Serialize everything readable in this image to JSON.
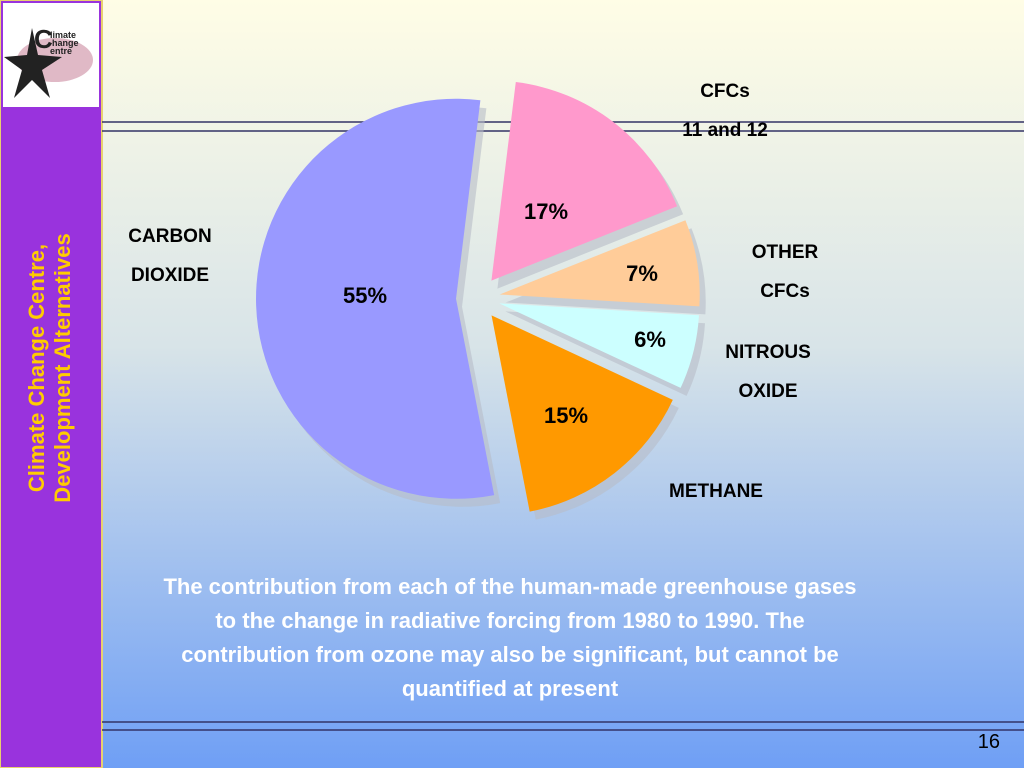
{
  "sidebar": {
    "lines": [
      "Climate Change Centre,",
      "Development Alternatives"
    ]
  },
  "logo": {
    "initial": "C",
    "lines": [
      "limate",
      "hange",
      "entre"
    ]
  },
  "chart_data": {
    "type": "pie",
    "categories": [
      [
        "CFCs",
        "11 and 12"
      ],
      [
        "OTHER",
        "CFCs"
      ],
      [
        "NITROUS",
        "OXIDE"
      ],
      [
        "METHANE"
      ],
      [
        "CARBON",
        "DIOXIDE"
      ]
    ],
    "values": [
      17,
      7,
      6,
      15,
      55
    ],
    "value_labels": [
      "17%",
      "7%",
      "6%",
      "15%",
      "55%"
    ],
    "colors": [
      "#ff99cc",
      "#ffcc99",
      "#ccffff",
      "#ff9900",
      "#9999ff"
    ]
  },
  "caption": [
    "The contribution from each of the human-made greenhouse gases",
    "to the change in radiative forcing from 1980 to 1990.  The",
    "contribution from ozone may also be significant, but cannot  be",
    "quantified at present"
  ],
  "page_number": "16"
}
